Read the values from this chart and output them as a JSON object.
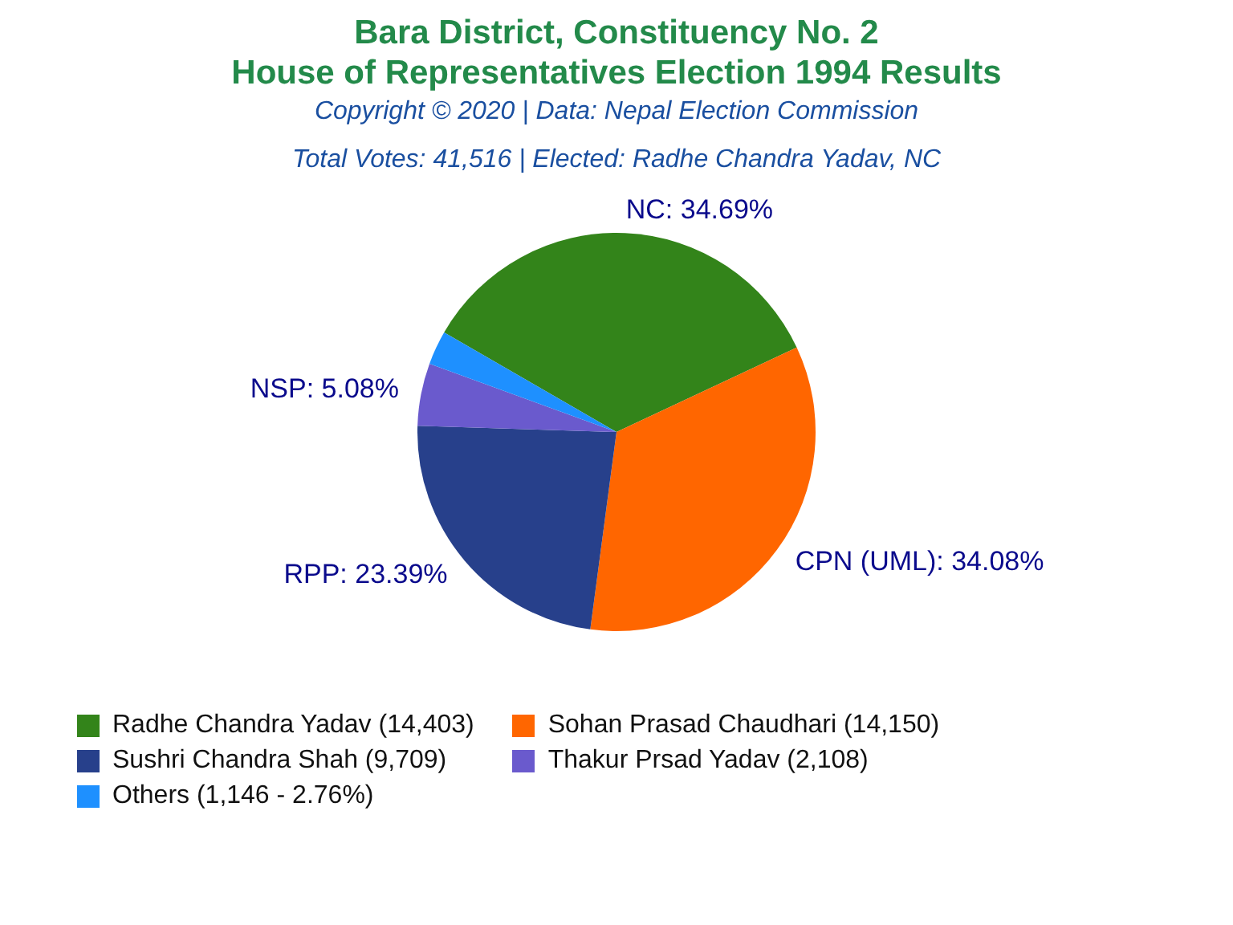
{
  "chart_data": {
    "type": "pie",
    "title": "Bara District, Constituency No. 2\nHouse of Representatives Election 1994 Results",
    "subtitle": "Copyright © 2020 | Data: Nepal Election Commission",
    "annotations": [
      "Total Votes: 41,516 | Elected: Radhe Chandra Yadav, NC"
    ],
    "categories": [
      "Radhe Chandra Yadav (14,403)",
      "Sohan Prasad Chaudhari (14,150)",
      "Sushri Chandra Shah (9,709)",
      "Thakur Prsad Yadav (2,108)",
      "Others (1,146 - 2.76%)"
    ],
    "values": [
      34.69,
      34.08,
      23.39,
      5.08,
      2.76
    ],
    "value_labels": [
      "NC: 34.69%",
      "CPN (UML): 34.08%",
      "RPP: 23.39%",
      "NSP: 5.08%",
      null
    ],
    "colors": [
      "#33841a",
      "#ff6600",
      "#27408b",
      "#6a5acd",
      "#1e90ff"
    ],
    "legend": "bottom"
  }
}
